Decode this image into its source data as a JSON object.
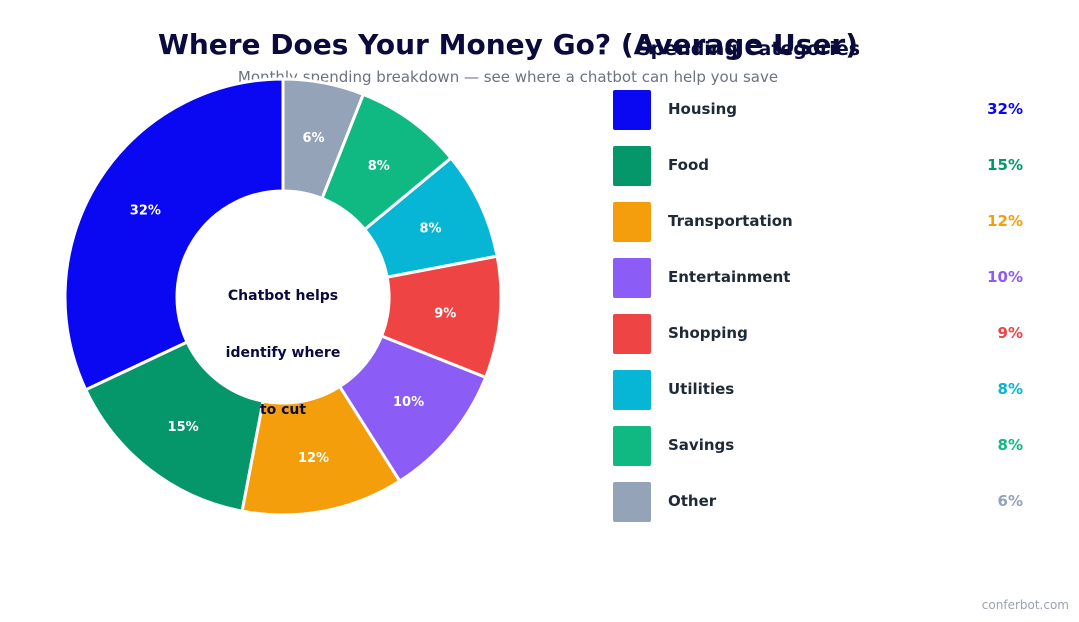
{
  "chart_data": {
    "type": "pie",
    "title": "Where Does Your Money Go? (Average User)",
    "subtitle": "Monthly spending breakdown — see where a chatbot can help you save",
    "legend_title": "Spending Categories",
    "center_label_lines": [
      "Chatbot helps",
      "identify where",
      "to cut"
    ],
    "unit": "%",
    "donut": true,
    "legend_position": "right",
    "categories": [
      "Housing",
      "Food",
      "Transportation",
      "Entertainment",
      "Shopping",
      "Utilities",
      "Savings",
      "Other"
    ],
    "values": [
      32,
      15,
      12,
      10,
      9,
      8,
      8,
      6
    ],
    "value_labels": [
      "32%",
      "15%",
      "12%",
      "10%",
      "9%",
      "8%",
      "8%",
      "6%"
    ],
    "colors": [
      "#0a08f2",
      "#059669",
      "#f59e0b",
      "#8b5cf6",
      "#ef4444",
      "#06b6d4",
      "#10b981",
      "#94a3b8"
    ]
  },
  "watermark": "conferbot.com"
}
